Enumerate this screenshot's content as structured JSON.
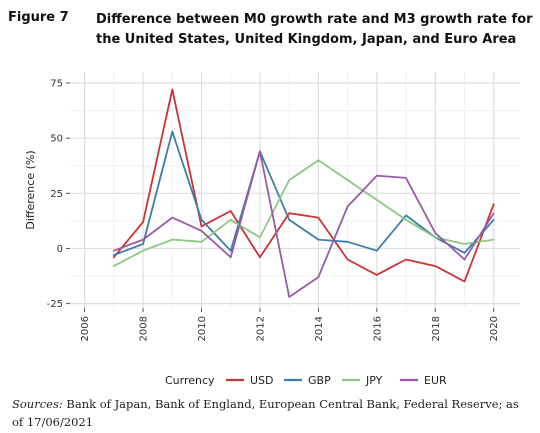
{
  "figure": {
    "label": "Figure 7",
    "title": "Difference between M0 growth rate and M3 growth rate for the United States, United Kingdom, Japan, and Euro Area"
  },
  "sources": {
    "lead": "Sources:",
    "text": " Bank of Japan, Bank of England, European Central Bank, Federal Reserve; as of 17/06/2021"
  },
  "chart_data": {
    "type": "line",
    "title": "Difference between M0 growth rate and M3 growth rate for the United States, United Kingdom, Japan, and Euro Area",
    "xlabel": "",
    "ylabel": "Difference (%)",
    "xlim": [
      2005.5,
      2020.9
    ],
    "ylim": [
      -27,
      80
    ],
    "x_ticks": [
      "2006",
      "2008",
      "2010",
      "2012",
      "2014",
      "2016",
      "2018",
      "2020"
    ],
    "y_ticks": [
      "75",
      "50",
      "25",
      "0",
      "-25"
    ],
    "grid": true,
    "legend_title": "Currency",
    "legend_position": "bottom",
    "x": [
      2007,
      2008,
      2009,
      2010,
      2011,
      2012,
      2013,
      2014,
      2015,
      2016,
      2017,
      2018,
      2019,
      2020
    ],
    "series": [
      {
        "name": "USD",
        "color": "#cc3333",
        "values": [
          -4,
          12,
          72,
          10,
          17,
          -4,
          16,
          14,
          -5,
          -12,
          -5,
          -8,
          -15,
          20
        ]
      },
      {
        "name": "GBP",
        "color": "#3c7ea8",
        "values": [
          -3,
          2,
          53,
          13,
          -1,
          44,
          13,
          4,
          3,
          -1,
          15,
          5,
          -2,
          13
        ]
      },
      {
        "name": "JPY",
        "color": "#8cc784",
        "values": [
          -8,
          -1,
          4,
          3,
          13,
          5,
          31,
          40,
          31,
          22,
          13,
          5,
          2,
          4
        ]
      },
      {
        "name": "EUR",
        "color": "#9a5aa8",
        "values": [
          -1,
          4,
          14,
          8,
          -4,
          44,
          -22,
          -13,
          19,
          33,
          32,
          7,
          -5,
          16
        ]
      }
    ]
  }
}
